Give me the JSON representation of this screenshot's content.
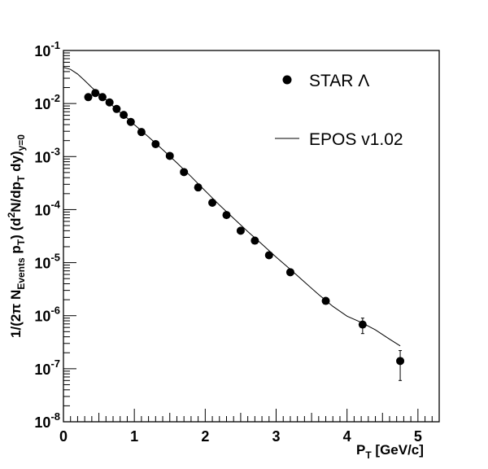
{
  "chart_data": {
    "type": "scatter",
    "title": "",
    "xlabel": "P_T [GeV/c]",
    "ylabel": "1/(2π N_Events p_T) (d²N/dp_T dy)_y=0",
    "xlim": [
      0,
      5.3
    ],
    "ylim": [
      1e-08,
      0.1
    ],
    "yscale": "log",
    "grid": false,
    "legend_position": "top-right",
    "x_ticks": [
      "0",
      "1",
      "2",
      "3",
      "4",
      "5"
    ],
    "y_ticks": [
      {
        "value": 1e-08,
        "base": "10",
        "exp": "-8"
      },
      {
        "value": 1e-07,
        "base": "10",
        "exp": "-7"
      },
      {
        "value": 1e-06,
        "base": "10",
        "exp": "-6"
      },
      {
        "value": 1e-05,
        "base": "10",
        "exp": "-5"
      },
      {
        "value": 0.0001,
        "base": "10",
        "exp": "-4"
      },
      {
        "value": 0.001,
        "base": "10",
        "exp": "-3"
      },
      {
        "value": 0.01,
        "base": "10",
        "exp": "-2"
      },
      {
        "value": 0.1,
        "base": "10",
        "exp": "-1"
      }
    ],
    "series": [
      {
        "name": "STAR Λ",
        "kind": "points",
        "x": [
          0.35,
          0.45,
          0.55,
          0.65,
          0.75,
          0.85,
          0.95,
          1.1,
          1.3,
          1.5,
          1.7,
          1.9,
          2.1,
          2.3,
          2.5,
          2.7,
          2.9,
          3.2,
          3.7,
          4.22,
          4.75
        ],
        "y": [
          0.0132,
          0.0158,
          0.0132,
          0.0105,
          0.0079,
          0.0061,
          0.0045,
          0.0029,
          0.00172,
          0.00103,
          0.00051,
          0.000262,
          0.000135,
          7.9e-05,
          4e-05,
          2.6e-05,
          1.38e-05,
          6.6e-06,
          1.9e-06,
          6.8e-07,
          1.4e-07
        ],
        "yerr_low": [
          0,
          0,
          0,
          0,
          0,
          0,
          0,
          0,
          0,
          0,
          0,
          0,
          0,
          0,
          0,
          0,
          0,
          0,
          0,
          2.2e-07,
          8e-08
        ],
        "yerr_high": [
          0,
          0,
          0,
          0,
          0,
          0,
          0,
          0,
          0,
          0,
          0,
          0,
          0,
          0,
          0,
          0,
          0,
          0,
          0,
          2.2e-07,
          8e-08
        ]
      },
      {
        "name": "EPOS v1.02",
        "kind": "line",
        "x": [
          0.0,
          0.1,
          0.2,
          0.3,
          0.4,
          0.5,
          0.6,
          0.7,
          0.8,
          0.9,
          1.0,
          1.2,
          1.4,
          1.6,
          1.8,
          2.0,
          2.2,
          2.4,
          2.6,
          2.8,
          3.0,
          3.2,
          3.4,
          3.6,
          3.8,
          4.0,
          4.2,
          4.4,
          4.6,
          4.75
        ],
        "y": [
          0.048,
          0.044,
          0.036,
          0.027,
          0.02,
          0.0155,
          0.0118,
          0.0089,
          0.0068,
          0.0053,
          0.004,
          0.00235,
          0.00135,
          0.00076,
          0.00042,
          0.000226,
          0.000122,
          6.85e-05,
          3.85e-05,
          2.23e-05,
          1.27e-05,
          7.5e-06,
          4.3e-06,
          2.5e-06,
          1.5e-06,
          9.8e-07,
          7.5e-07,
          5.4e-07,
          3.6e-07,
          2.7e-07
        ]
      }
    ]
  }
}
